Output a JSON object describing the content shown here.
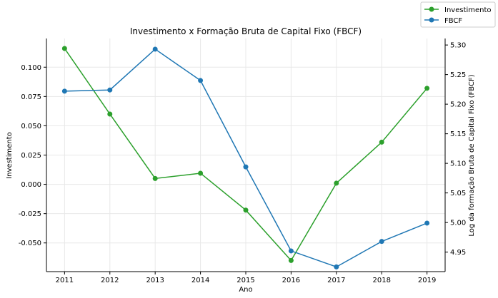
{
  "chart_data": {
    "type": "line",
    "title": "Investimento x Formação Bruta de Capital Fixo (FBCF)",
    "xlabel": "Ano",
    "ylabel_left": "Investimento",
    "ylabel_right": "Log da formação Bruta de Capital Fixo (FBCF)",
    "x": [
      2011,
      2012,
      2013,
      2014,
      2015,
      2016,
      2017,
      2018,
      2019
    ],
    "xlim": [
      2010.6,
      2019.4
    ],
    "ylim_left": [
      -0.0745,
      0.1245
    ],
    "yticks_left": [
      "-0.050",
      "-0.025",
      "0.000",
      "0.025",
      "0.050",
      "0.075",
      "0.100"
    ],
    "yticks_left_values": [
      -0.05,
      -0.025,
      0,
      0.025,
      0.05,
      0.075,
      0.1
    ],
    "ylim_right": [
      4.917,
      5.311
    ],
    "yticks_right": [
      "4.95",
      "5.00",
      "5.05",
      "5.10",
      "5.15",
      "5.20",
      "5.25",
      "5.30"
    ],
    "yticks_right_values": [
      4.95,
      5.0,
      5.05,
      5.1,
      5.15,
      5.2,
      5.25,
      5.3
    ],
    "grid": true,
    "legend_position": "top-right",
    "series": [
      {
        "name": "Investimento",
        "axis": "left",
        "color": "#2ca02c",
        "values": [
          0.116,
          0.06,
          0.005,
          0.0095,
          -0.022,
          -0.065,
          0.001,
          0.036,
          0.082
        ]
      },
      {
        "name": "FBCF",
        "axis": "right",
        "color": "#1f77b4",
        "values": [
          5.222,
          5.224,
          5.293,
          5.24,
          5.094,
          4.952,
          4.925,
          4.968,
          4.999
        ]
      }
    ]
  }
}
